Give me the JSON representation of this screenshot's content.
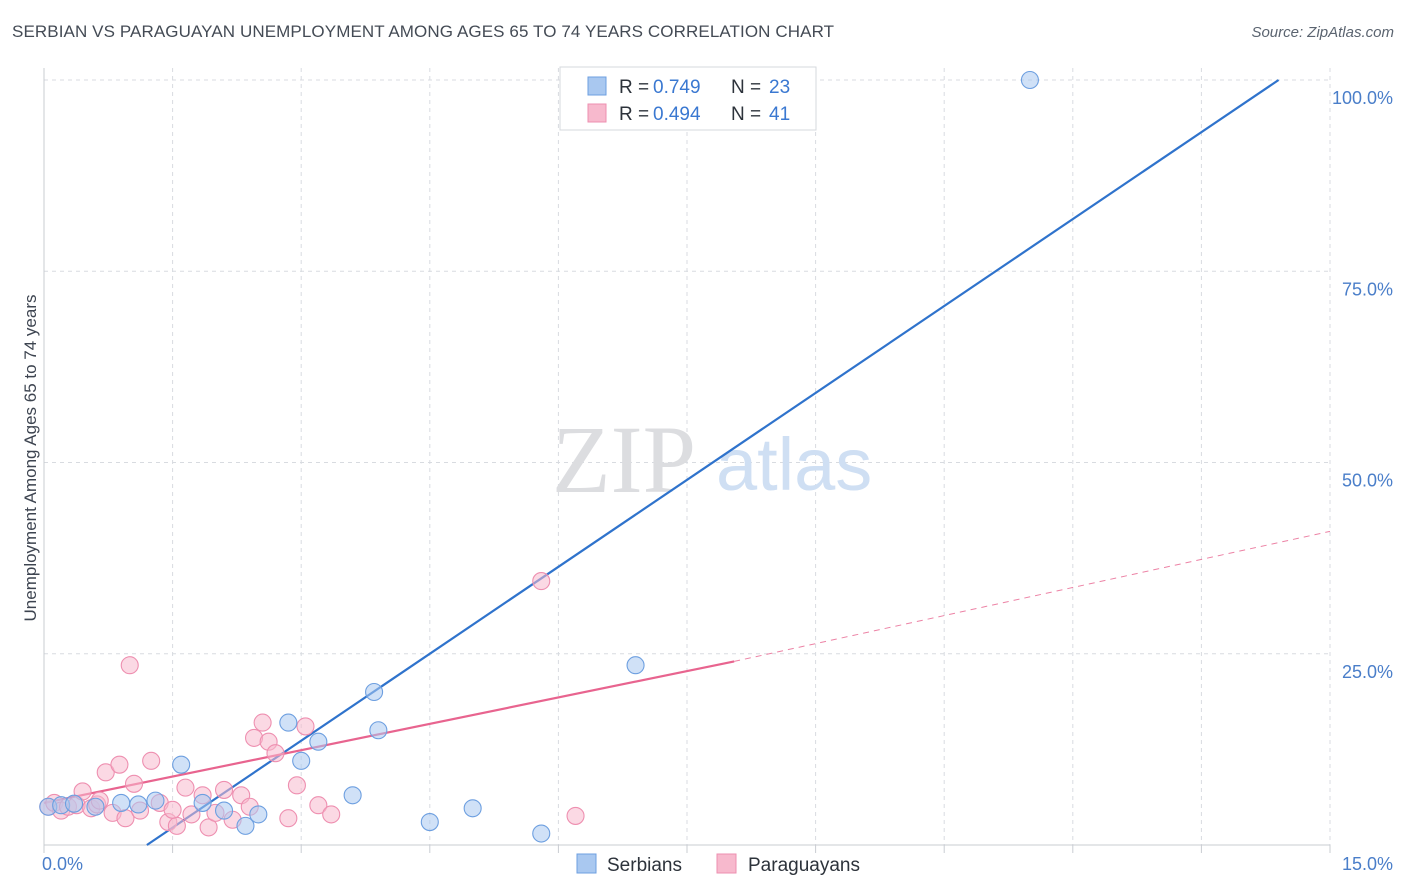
{
  "header": {
    "title": "SERBIAN VS PARAGUAYAN UNEMPLOYMENT AMONG AGES 65 TO 74 YEARS CORRELATION CHART",
    "source": "Source: ZipAtlas.com"
  },
  "watermark": {
    "zip": "ZIP",
    "atlas": "atlas"
  },
  "colors": {
    "serbians_fill": "#a9c8f0",
    "serbians_stroke": "#6d9fe0",
    "serbians_line": "#2f73cc",
    "paraguayans_fill": "#f7b9cd",
    "paraguayans_stroke": "#ee8fb0",
    "paraguayans_line": "#e8648f",
    "grid": "#d8dbe0",
    "tick_text": "#4a7ec9"
  },
  "stats_box": {
    "rows": [
      {
        "series": "Serbians",
        "r_label": "R =",
        "r_value": "0.749",
        "n_label": "N =",
        "n_value": "23"
      },
      {
        "series": "Paraguayans",
        "r_label": "R =",
        "r_value": "0.494",
        "n_label": "N =",
        "n_value": "41"
      }
    ]
  },
  "chart_data": {
    "type": "scatter",
    "title": "SERBIAN VS PARAGUAYAN UNEMPLOYMENT AMONG AGES 65 TO 74 YEARS CORRELATION CHART",
    "xlabel": "",
    "ylabel": "Unemployment Among Ages 65 to 74 years",
    "xlim": [
      0,
      15
    ],
    "ylim": [
      0,
      100
    ],
    "x_tick_labels": [
      {
        "value": 0,
        "label": "0.0%"
      },
      {
        "value": 15,
        "label": "15.0%"
      }
    ],
    "y_tick_labels": [
      {
        "value": 100,
        "label": "100.0%"
      },
      {
        "value": 75,
        "label": "75.0%"
      },
      {
        "value": 50,
        "label": "50.0%"
      },
      {
        "value": 25,
        "label": "25.0%"
      }
    ],
    "grid": true,
    "legend": [
      "Serbians",
      "Paraguayans"
    ],
    "series": [
      {
        "name": "Serbians",
        "r": 0.749,
        "n": 23,
        "points": [
          [
            0.05,
            5.0
          ],
          [
            0.2,
            5.2
          ],
          [
            0.35,
            5.4
          ],
          [
            0.6,
            5.0
          ],
          [
            0.9,
            5.5
          ],
          [
            1.1,
            5.3
          ],
          [
            1.3,
            5.8
          ],
          [
            1.6,
            10.5
          ],
          [
            1.85,
            5.5
          ],
          [
            2.1,
            4.5
          ],
          [
            2.35,
            2.5
          ],
          [
            2.5,
            4.0
          ],
          [
            2.85,
            16.0
          ],
          [
            3.0,
            11.0
          ],
          [
            3.2,
            13.5
          ],
          [
            3.6,
            6.5
          ],
          [
            3.85,
            20.0
          ],
          [
            3.9,
            15.0
          ],
          [
            4.5,
            3.0
          ],
          [
            5.0,
            4.8
          ],
          [
            5.8,
            1.5
          ],
          [
            6.9,
            23.5
          ],
          [
            11.5,
            100.0
          ]
        ],
        "trend": {
          "x0": 1.2,
          "y0": 0.0,
          "x1": 14.4,
          "y1": 100.0
        }
      },
      {
        "name": "Paraguayans",
        "r": 0.494,
        "n": 41,
        "points": [
          [
            0.05,
            5.0
          ],
          [
            0.12,
            5.5
          ],
          [
            0.2,
            4.5
          ],
          [
            0.28,
            5.0
          ],
          [
            0.38,
            5.2
          ],
          [
            0.45,
            7.0
          ],
          [
            0.55,
            4.8
          ],
          [
            0.62,
            5.3
          ],
          [
            0.72,
            9.5
          ],
          [
            0.8,
            4.2
          ],
          [
            0.88,
            10.5
          ],
          [
            0.95,
            3.5
          ],
          [
            1.05,
            8.0
          ],
          [
            1.12,
            4.5
          ],
          [
            1.25,
            11.0
          ],
          [
            1.35,
            5.5
          ],
          [
            1.45,
            3.0
          ],
          [
            1.55,
            2.5
          ],
          [
            1.65,
            7.5
          ],
          [
            1.72,
            4.0
          ],
          [
            1.85,
            6.5
          ],
          [
            1.92,
            2.3
          ],
          [
            2.0,
            4.2
          ],
          [
            2.1,
            7.2
          ],
          [
            2.2,
            3.3
          ],
          [
            2.3,
            6.5
          ],
          [
            2.45,
            14.0
          ],
          [
            2.55,
            16.0
          ],
          [
            2.62,
            13.5
          ],
          [
            2.7,
            12.0
          ],
          [
            2.85,
            3.5
          ],
          [
            2.95,
            7.8
          ],
          [
            3.05,
            15.5
          ],
          [
            3.2,
            5.2
          ],
          [
            3.35,
            4.0
          ],
          [
            1.0,
            23.5
          ],
          [
            5.8,
            34.5
          ],
          [
            6.2,
            3.8
          ],
          [
            0.65,
            5.8
          ],
          [
            1.5,
            4.6
          ],
          [
            2.4,
            5.0
          ]
        ],
        "trend": {
          "x0": 0.0,
          "y0": 5.5,
          "x1": 8.05,
          "y1": 24.0
        },
        "trend_extension": {
          "x0": 8.05,
          "y0": 24.0,
          "x1": 15.0,
          "y1": 41.0
        }
      }
    ]
  }
}
